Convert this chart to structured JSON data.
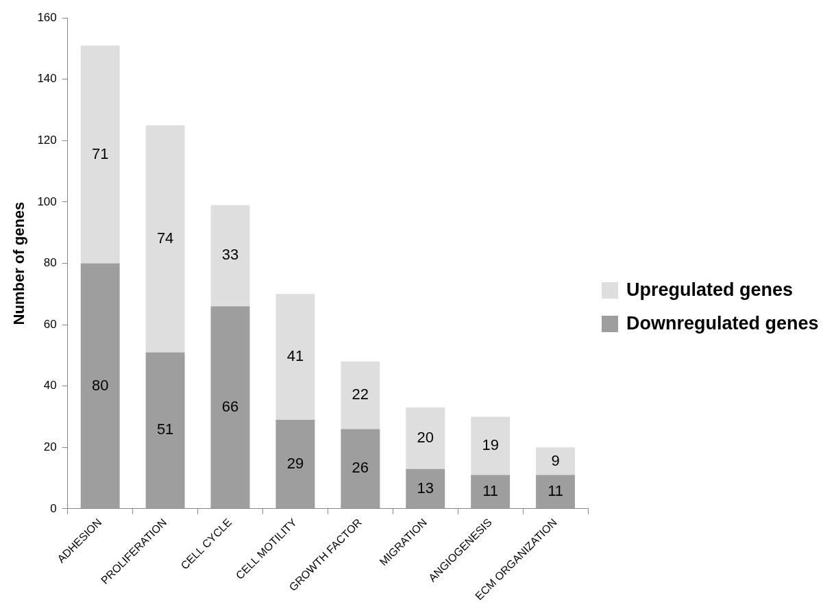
{
  "chart_data": {
    "type": "bar",
    "stacked": true,
    "ylabel": "Number of genes",
    "categories": [
      "ADHESION",
      "PROLIFERATION",
      "CELL CYCLE",
      "CELL MOTILITY",
      "GROWTH FACTOR",
      "MIGRATION",
      "ANGIOGENESIS",
      "ECM ORGANIZATION"
    ],
    "series": [
      {
        "name": "Downregulated genes",
        "color": "#9e9e9e",
        "values": [
          80,
          51,
          66,
          29,
          26,
          13,
          11,
          11
        ]
      },
      {
        "name": "Upregulated genes",
        "color": "#dedede",
        "values": [
          71,
          74,
          33,
          41,
          22,
          20,
          19,
          9
        ]
      }
    ],
    "ylim": [
      0,
      160
    ],
    "yticks": [
      0,
      20,
      40,
      60,
      80,
      100,
      120,
      140,
      160
    ],
    "grid": false,
    "legend": "right",
    "data_labels": true
  }
}
